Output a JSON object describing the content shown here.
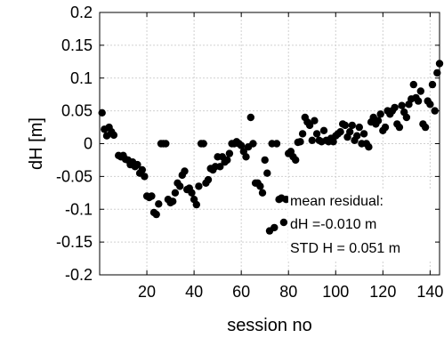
{
  "chart_data": {
    "type": "scatter",
    "xlabel": "session no",
    "ylabel": "dH [m]",
    "xlim": [
      0,
      144
    ],
    "ylim": [
      -0.2,
      0.2
    ],
    "xticks": [
      20,
      40,
      60,
      80,
      100,
      120,
      140
    ],
    "yticks": [
      -0.2,
      -0.15,
      -0.1,
      -0.05,
      0,
      0.05,
      0.1,
      0.15,
      0.2
    ],
    "ytick_labels": [
      "-0.2",
      "-0.15",
      "-0.1",
      "-0.05",
      "0",
      "0.05",
      "0.1",
      "0.15",
      "0.2"
    ],
    "grid": true,
    "marker_color": "#000000",
    "annotation": [
      "mean residual:",
      "dH =-0.010 m",
      "STD H = 0.051 m"
    ],
    "series": [
      {
        "values": [
          [
            1,
            0.047
          ],
          [
            2,
            0.022
          ],
          [
            3,
            0.012
          ],
          [
            4,
            0.025
          ],
          [
            5,
            0.018
          ],
          [
            6,
            0.013
          ],
          [
            8,
            -0.018
          ],
          [
            9,
            -0.02
          ],
          [
            10,
            -0.018
          ],
          [
            11,
            -0.024
          ],
          [
            12,
            -0.025
          ],
          [
            13,
            -0.032
          ],
          [
            14,
            -0.028
          ],
          [
            15,
            -0.035
          ],
          [
            16,
            -0.032
          ],
          [
            17,
            -0.045
          ],
          [
            18,
            -0.04
          ],
          [
            19,
            -0.05
          ],
          [
            20,
            -0.08
          ],
          [
            21,
            -0.082
          ],
          [
            22,
            -0.08
          ],
          [
            23,
            -0.105
          ],
          [
            24,
            -0.108
          ],
          [
            25,
            -0.092
          ],
          [
            26,
            0.0
          ],
          [
            27,
            0.0
          ],
          [
            28,
            0.0
          ],
          [
            29,
            -0.085
          ],
          [
            30,
            -0.09
          ],
          [
            31,
            -0.088
          ],
          [
            32,
            -0.075
          ],
          [
            33,
            -0.06
          ],
          [
            34,
            -0.065
          ],
          [
            35,
            -0.048
          ],
          [
            36,
            -0.042
          ],
          [
            37,
            -0.07
          ],
          [
            38,
            -0.068
          ],
          [
            39,
            -0.075
          ],
          [
            40,
            -0.085
          ],
          [
            41,
            -0.093
          ],
          [
            42,
            -0.065
          ],
          [
            43,
            0.0
          ],
          [
            44,
            0.0
          ],
          [
            45,
            -0.06
          ],
          [
            46,
            -0.055
          ],
          [
            47,
            -0.038
          ],
          [
            48,
            -0.04
          ],
          [
            49,
            -0.035
          ],
          [
            50,
            -0.02
          ],
          [
            51,
            -0.035
          ],
          [
            52,
            -0.02
          ],
          [
            53,
            -0.028
          ],
          [
            54,
            -0.025
          ],
          [
            55,
            -0.015
          ],
          [
            56,
            0.0
          ],
          [
            57,
            0.0
          ],
          [
            58,
            0.003
          ],
          [
            59,
            0.0
          ],
          [
            60,
            -0.003
          ],
          [
            61,
            -0.012
          ],
          [
            62,
            -0.02
          ],
          [
            63,
            -0.005
          ],
          [
            64,
            0.04
          ],
          [
            65,
            0.0
          ],
          [
            66,
            -0.06
          ],
          [
            67,
            -0.06
          ],
          [
            68,
            -0.065
          ],
          [
            69,
            -0.075
          ],
          [
            70,
            -0.025
          ],
          [
            71,
            -0.045
          ],
          [
            72,
            -0.133
          ],
          [
            73,
            0.0
          ],
          [
            74,
            -0.128
          ],
          [
            75,
            0.0
          ],
          [
            76,
            -0.085
          ],
          [
            77,
            -0.083
          ],
          [
            78,
            -0.12
          ],
          [
            79,
            -0.085
          ],
          [
            80,
            -0.015
          ],
          [
            81,
            -0.012
          ],
          [
            82,
            -0.02
          ],
          [
            83,
            -0.025
          ],
          [
            84,
            0.002
          ],
          [
            85,
            0.003
          ],
          [
            86,
            0.015
          ],
          [
            87,
            0.04
          ],
          [
            88,
            0.033
          ],
          [
            89,
            0.028
          ],
          [
            90,
            0.005
          ],
          [
            91,
            0.035
          ],
          [
            92,
            0.015
          ],
          [
            93,
            0.005
          ],
          [
            94,
            0.003
          ],
          [
            95,
            0.02
          ],
          [
            96,
            0.005
          ],
          [
            97,
            0.003
          ],
          [
            98,
            0.008
          ],
          [
            99,
            0.003
          ],
          [
            100,
            0.012
          ],
          [
            101,
            0.015
          ],
          [
            102,
            0.018
          ],
          [
            103,
            0.03
          ],
          [
            104,
            0.028
          ],
          [
            105,
            0.01
          ],
          [
            106,
            0.018
          ],
          [
            107,
            0.028
          ],
          [
            108,
            0.005
          ],
          [
            109,
            0.012
          ],
          [
            110,
            0.025
          ],
          [
            111,
            0.0
          ],
          [
            112,
            0.015
          ],
          [
            113,
            0.0
          ],
          [
            114,
            -0.005
          ],
          [
            115,
            0.033
          ],
          [
            116,
            0.04
          ],
          [
            117,
            0.03
          ],
          [
            118,
            0.035
          ],
          [
            119,
            0.045
          ],
          [
            120,
            0.02
          ],
          [
            121,
            0.025
          ],
          [
            122,
            0.05
          ],
          [
            123,
            0.045
          ],
          [
            124,
            0.05
          ],
          [
            125,
            0.055
          ],
          [
            126,
            0.03
          ],
          [
            127,
            0.025
          ],
          [
            128,
            0.058
          ],
          [
            129,
            0.048
          ],
          [
            130,
            0.04
          ],
          [
            131,
            0.06
          ],
          [
            132,
            0.068
          ],
          [
            133,
            0.09
          ],
          [
            134,
            0.07
          ],
          [
            135,
            0.065
          ],
          [
            136,
            0.08
          ],
          [
            137,
            0.03
          ],
          [
            138,
            0.025
          ],
          [
            139,
            0.065
          ],
          [
            140,
            0.06
          ],
          [
            141,
            0.09
          ],
          [
            142,
            0.05
          ],
          [
            143,
            0.108
          ],
          [
            144,
            0.122
          ]
        ]
      }
    ]
  }
}
